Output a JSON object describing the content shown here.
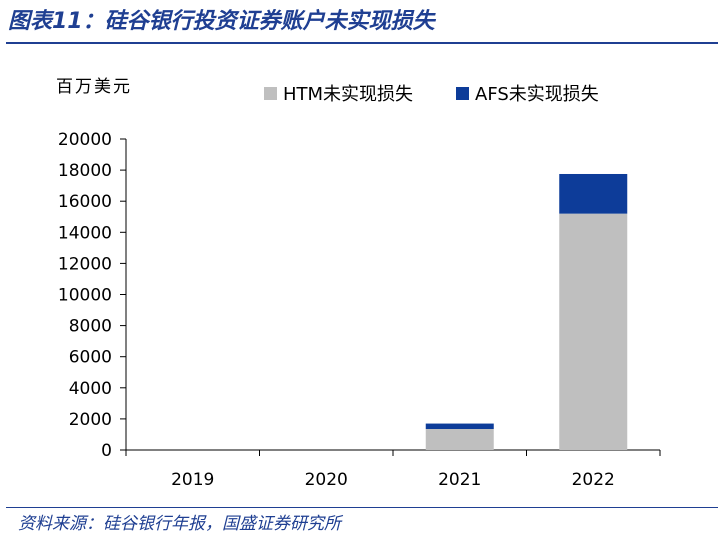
{
  "title": "图表11：硅谷银行投资证券账户未实现损失",
  "source": "资料来源：硅谷银行年报，国盛证券研究所",
  "unit": "百万美元",
  "colors": {
    "htm": "#bfbfbf",
    "afs": "#0d3c99",
    "title": "#1f3f92",
    "axis": "#000000"
  },
  "chart_data": {
    "type": "bar",
    "stacked": true,
    "categories": [
      "2019",
      "2020",
      "2021",
      "2022"
    ],
    "series": [
      {
        "name": "HTM未实现损失",
        "values": [
          0,
          0,
          1350,
          15200
        ]
      },
      {
        "name": "AFS未实现损失",
        "values": [
          0,
          0,
          350,
          2550
        ]
      }
    ],
    "ylim": [
      0,
      20000
    ],
    "yticks": [
      0,
      2000,
      4000,
      6000,
      8000,
      10000,
      12000,
      14000,
      16000,
      18000,
      20000
    ],
    "ylabel": "百万美元",
    "legend_position": "top",
    "grid": false
  }
}
